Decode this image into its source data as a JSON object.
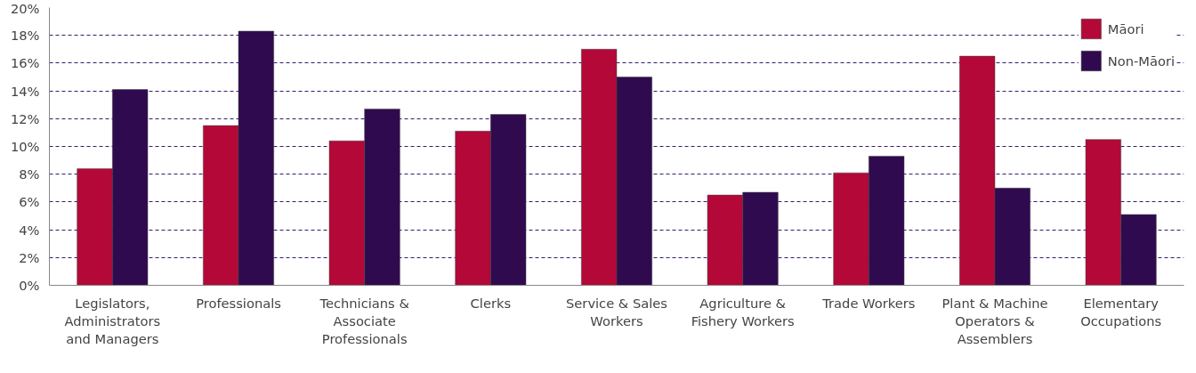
{
  "chart_data": {
    "type": "bar",
    "categories": [
      "Legislators, Administrators and Managers",
      "Professionals",
      "Technicians & Associate Professionals",
      "Clerks",
      "Service & Sales Workers",
      "Agriculture & Fishery Workers",
      "Trade Workers",
      "Plant & Machine Operators & Assemblers",
      "Elementary Occupations"
    ],
    "series": [
      {
        "name": "Māori",
        "color": "#b30838",
        "values": [
          8.4,
          11.5,
          10.4,
          11.1,
          17.0,
          6.5,
          8.1,
          16.5,
          10.5
        ]
      },
      {
        "name": "Non-Māori",
        "color": "#300a4f",
        "values": [
          14.1,
          18.3,
          12.7,
          12.3,
          15.0,
          6.7,
          9.3,
          7.0,
          5.1
        ]
      }
    ],
    "ylim": [
      0,
      20
    ],
    "yticks": [
      {
        "value": 0,
        "label": "0%"
      },
      {
        "value": 2,
        "label": "2%"
      },
      {
        "value": 4,
        "label": "4%"
      },
      {
        "value": 6,
        "label": "6%"
      },
      {
        "value": 8,
        "label": "8%"
      },
      {
        "value": 10,
        "label": "10%"
      },
      {
        "value": 12,
        "label": "12%"
      },
      {
        "value": 14,
        "label": "14%"
      },
      {
        "value": 16,
        "label": "16%"
      },
      {
        "value": 18,
        "label": "18%"
      },
      {
        "value": 20,
        "label": "20%"
      }
    ],
    "grid": "y",
    "legend": "top right"
  }
}
